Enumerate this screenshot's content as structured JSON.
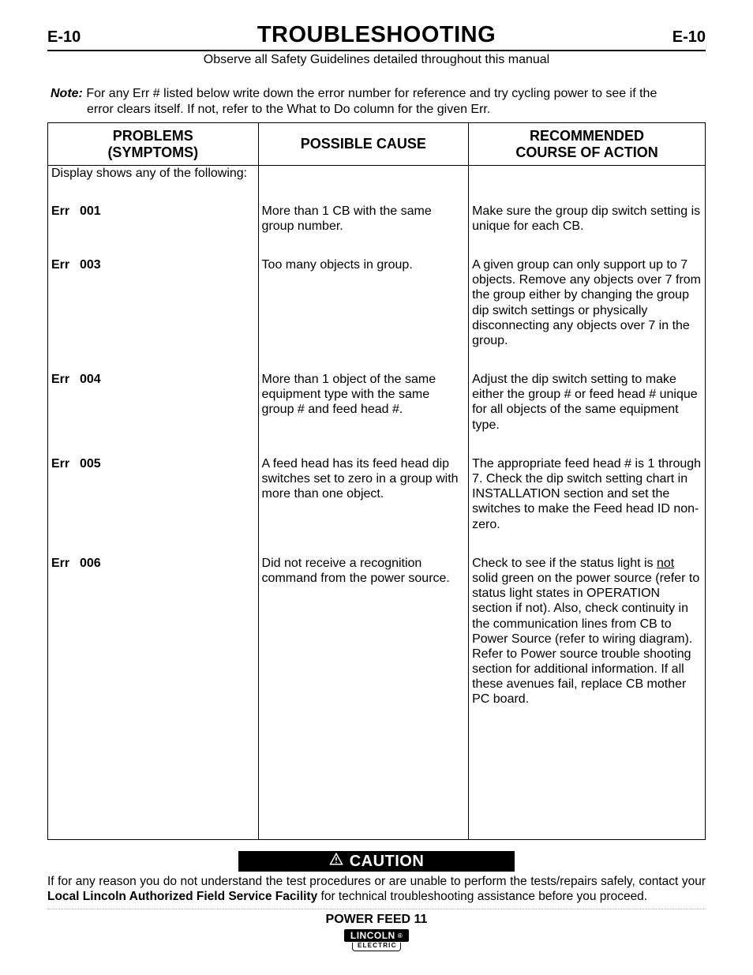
{
  "page": {
    "num_left": "E-10",
    "num_right": "E-10",
    "title": "TROUBLESHOOTING",
    "safety_line": "Observe all Safety Guidelines detailed throughout this manual",
    "note_label": "Note:",
    "note_line1": "For any Err # listed below write down the error number for reference and try cycling power to see if the",
    "note_line2": "error clears itself.  If not, refer to the What to Do column for the given Err."
  },
  "headers": {
    "problems_l1": "PROBLEMS",
    "problems_l2": "(SYMPTOMS)",
    "cause": "POSSIBLE  CAUSE",
    "action_l1": "RECOMMENDED",
    "action_l2": "COURSE OF ACTION"
  },
  "intro_row": {
    "problems": "Display shows any of the following:",
    "cause": "",
    "action": ""
  },
  "rows": [
    {
      "err_label": "Err",
      "err_num": "001",
      "cause": "More than 1 CB with the same group number.",
      "action": "Make sure the group dip switch setting is unique for each CB."
    },
    {
      "err_label": "Err",
      "err_num": "003",
      "cause": "Too many objects in group.",
      "action": "A given group can only support up to 7 objects. Remove any objects over 7 from the group either by changing the group dip switch settings or physically disconnecting any objects over 7 in the group."
    },
    {
      "err_label": "Err",
      "err_num": "004",
      "cause": "More than 1 object of the same equipment type with the same group # and feed head #.",
      "action": "Adjust the dip switch setting to make either the group # or feed head # unique for all objects of the same equipment type."
    },
    {
      "err_label": "Err",
      "err_num": "005",
      "cause": "A feed head has its feed head dip switches set to zero in a group with more than one object.",
      "action": "The appropriate feed head # is 1 through 7. Check the dip switch setting chart in INSTALLATION section and set the switches to make the Feed head ID non-zero."
    },
    {
      "err_label": "Err",
      "err_num": "006",
      "cause": "Did not receive a recognition command from the power source.",
      "action_pre": "Check to see if the status light is ",
      "action_underline": "not",
      "action_post": " solid green on the power source (refer to status light states in OPERATION section if not). Also, check continuity in the communication lines from CB to Power Source (refer to wiring diagram).  Refer to Power source trouble shooting section for additional information. If all these avenues fail, replace CB mother PC board."
    }
  ],
  "filler_height": 168,
  "caution": {
    "label": "CAUTION",
    "text_pre": "If for any reason you do not understand the test procedures or are unable to perform the tests/repairs safely, contact your ",
    "text_bold": "Local  Lincoln Authorized Field Service Facility",
    "text_post": " for technical troubleshooting assistance before you proceed."
  },
  "footer": {
    "model": "POWER FEED 11",
    "logo_top": "LINCOLN",
    "logo_reg": "®",
    "logo_bottom": "ELECTRIC"
  },
  "colors": {
    "text": "#000000",
    "bg": "#ffffff",
    "caution_bg": "#000000",
    "caution_fg": "#ffffff"
  }
}
